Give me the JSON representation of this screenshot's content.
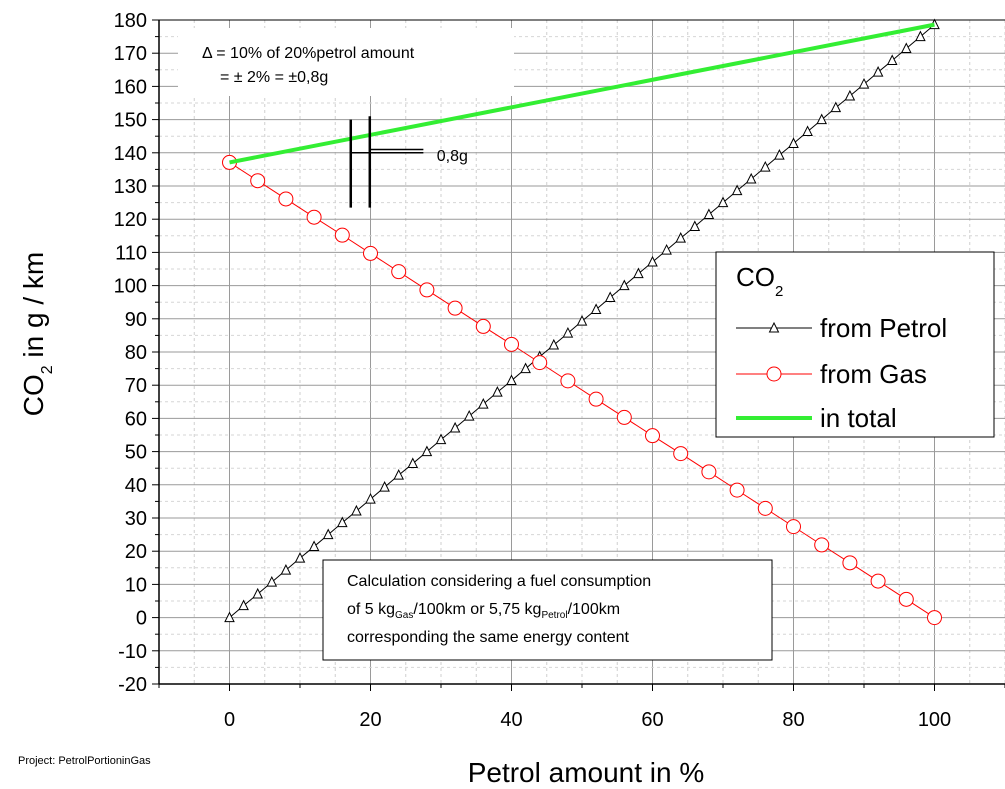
{
  "chart_data": {
    "type": "line",
    "xlabel": "Petrol amount in %",
    "ylabel": {
      "main": "CO",
      "sub": "2",
      "rest": " in g / km"
    },
    "xlim": [
      -10,
      110
    ],
    "ylim": [
      -20,
      180
    ],
    "x_ticks": [
      0,
      20,
      40,
      60,
      80,
      100
    ],
    "y_ticks": [
      -20,
      -10,
      0,
      10,
      20,
      30,
      40,
      50,
      60,
      70,
      80,
      90,
      100,
      110,
      120,
      130,
      140,
      150,
      160,
      170,
      180
    ],
    "grid": true,
    "legend": {
      "title_main": "CO",
      "title_sub": "2",
      "placement": "right",
      "entries": [
        "from Petrol",
        "from Gas",
        "in total"
      ]
    },
    "series": [
      {
        "name": "from Petrol",
        "color": "#000000",
        "marker": "triangle",
        "x": [
          0,
          2,
          4,
          6,
          8,
          10,
          12,
          14,
          16,
          18,
          20,
          22,
          24,
          26,
          28,
          30,
          32,
          34,
          36,
          38,
          40,
          42,
          44,
          46,
          48,
          50,
          52,
          54,
          56,
          58,
          60,
          62,
          64,
          66,
          68,
          70,
          72,
          74,
          76,
          78,
          80,
          82,
          84,
          86,
          88,
          90,
          92,
          94,
          96,
          98,
          100
        ],
        "y": [
          0,
          3.6,
          7.1,
          10.7,
          14.3,
          17.9,
          21.4,
          25.0,
          28.6,
          32.1,
          35.7,
          39.3,
          42.9,
          46.4,
          50.0,
          53.6,
          57.1,
          60.7,
          64.3,
          67.9,
          71.4,
          75.0,
          78.6,
          82.1,
          85.7,
          89.3,
          92.8,
          96.4,
          100.0,
          103.6,
          107.1,
          110.7,
          114.3,
          117.8,
          121.4,
          125.0,
          128.6,
          132.1,
          135.7,
          139.3,
          142.8,
          146.4,
          150.0,
          153.6,
          157.1,
          160.7,
          164.3,
          167.8,
          171.4,
          175.0,
          178.6
        ]
      },
      {
        "name": "from Gas",
        "color": "#ff0000",
        "marker": "circle",
        "x": [
          0,
          4,
          8,
          12,
          16,
          20,
          24,
          28,
          32,
          36,
          40,
          44,
          48,
          52,
          56,
          60,
          64,
          68,
          72,
          76,
          80,
          84,
          88,
          92,
          96,
          100
        ],
        "y": [
          137.1,
          131.6,
          126.1,
          120.6,
          115.2,
          109.7,
          104.2,
          98.7,
          93.2,
          87.7,
          82.3,
          76.8,
          71.3,
          65.8,
          60.3,
          54.8,
          49.4,
          43.9,
          38.4,
          32.9,
          27.4,
          21.9,
          16.5,
          11.0,
          5.5,
          0
        ]
      },
      {
        "name": "in total",
        "color": "#33ee33",
        "marker": "none",
        "x": [
          0,
          100
        ],
        "y": [
          137.1,
          178.6
        ]
      }
    ],
    "annotations": {
      "delta_line1": "Δ = 10% of 20%petrol amount",
      "delta_line2": "= ± 2% = ±0,8g",
      "marker_label": "0,8g",
      "info_line1": "Calculation considering a fuel consumption",
      "info_line2_a": "of 5 kg",
      "info_line2_sub1": "Gas",
      "info_line2_b": "/100km or 5,75 kg",
      "info_line2_sub2": "Petrol",
      "info_line2_c": "/100km",
      "info_line3": "corresponding the same energy content"
    }
  },
  "footer": {
    "project": "Project: PetrolPortioninGas"
  }
}
